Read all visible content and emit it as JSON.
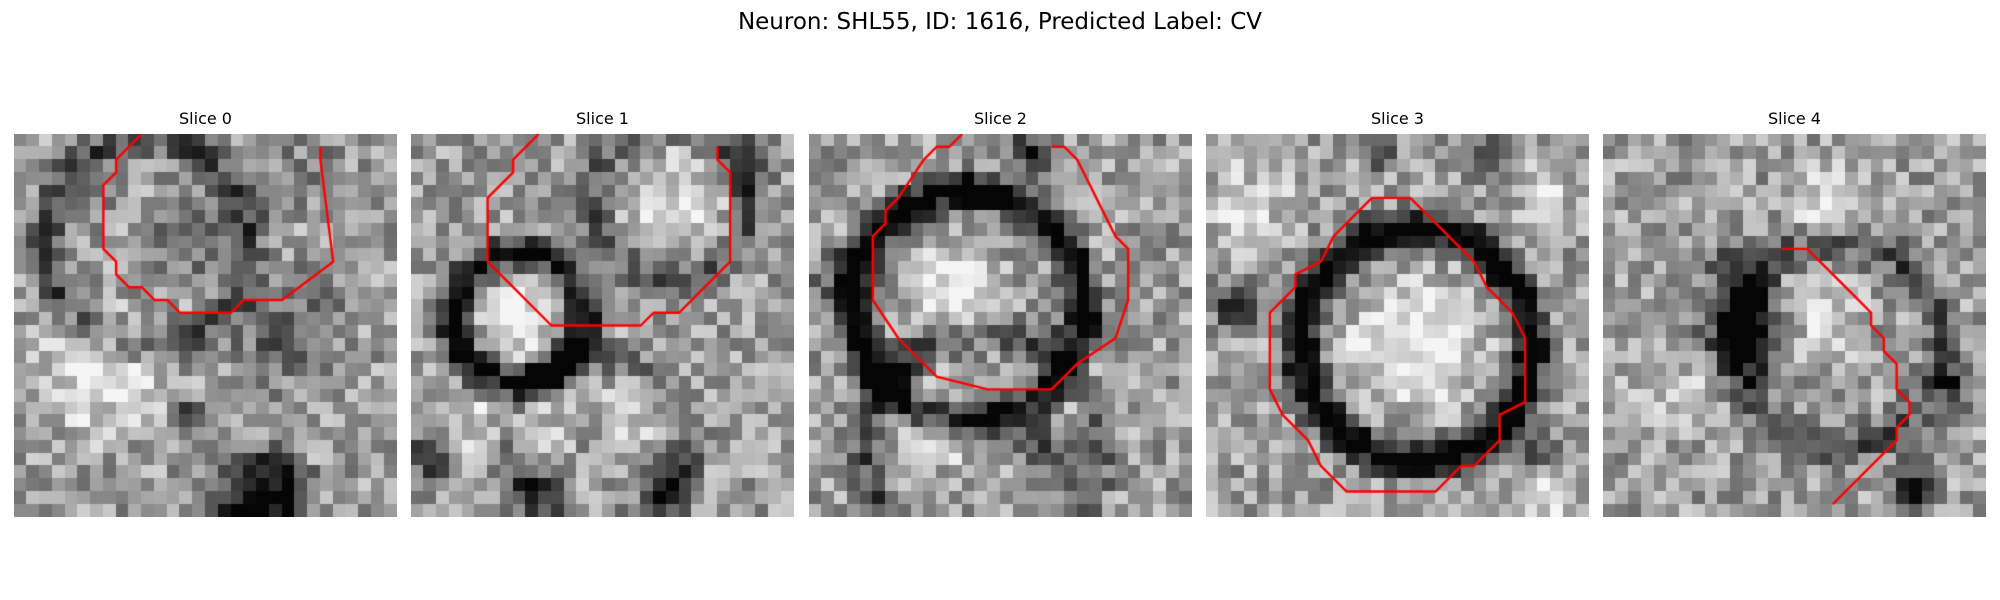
{
  "figure": {
    "title": "Neuron: SHL55, ID: 1616, Predicted Label: CV"
  },
  "panels": [
    {
      "title": "Slice 0",
      "seed": 101,
      "blobs": [
        [
          6,
          18,
          7,
          0.35
        ],
        [
          14,
          7,
          5,
          -0.25
        ],
        [
          21,
          15,
          6,
          -0.3
        ],
        [
          5,
          4,
          4,
          -0.15
        ],
        [
          23,
          2,
          4,
          -0.15
        ]
      ],
      "rings": [
        [
          10,
          8,
          8,
          -0.35
        ]
      ],
      "dark_spots": [
        [
          19,
          28,
          5,
          0.9
        ],
        [
          13,
          22,
          2,
          0.5
        ]
      ],
      "contour": [
        [
          10,
          0
        ],
        [
          8,
          2
        ],
        [
          8,
          3
        ],
        [
          7,
          4
        ],
        [
          7,
          9
        ],
        [
          8,
          10
        ],
        [
          8,
          11
        ],
        [
          9,
          12
        ],
        [
          10,
          12
        ],
        [
          11,
          13
        ],
        [
          12,
          13
        ],
        [
          13,
          14
        ],
        [
          17,
          14
        ],
        [
          18,
          13
        ],
        [
          21,
          13
        ],
        [
          25,
          10
        ],
        [
          24,
          2
        ],
        [
          24,
          1
        ]
      ]
    },
    {
      "title": "Slice 1",
      "seed": 202,
      "blobs": [
        [
          8,
          13,
          6,
          0.35
        ],
        [
          20,
          5,
          6,
          0.3
        ],
        [
          7,
          22,
          6,
          0.25
        ],
        [
          17,
          21,
          5,
          0.2
        ]
      ],
      "rings": [
        [
          8,
          14,
          5,
          -0.7
        ],
        [
          20,
          5,
          6,
          -0.3
        ],
        [
          14,
          24,
          7,
          -0.3
        ]
      ],
      "dark_spots": [
        [
          1,
          25,
          3,
          0.45
        ],
        [
          10,
          27,
          3,
          0.45
        ],
        [
          20,
          27,
          3,
          0.45
        ],
        [
          26,
          2,
          3,
          0.35
        ]
      ],
      "contour": [
        [
          10,
          0
        ],
        [
          8,
          2
        ],
        [
          8,
          3
        ],
        [
          7,
          4
        ],
        [
          6,
          5
        ],
        [
          6,
          10
        ],
        [
          8,
          12
        ],
        [
          10,
          14
        ],
        [
          11,
          15
        ],
        [
          18,
          15
        ],
        [
          19,
          14
        ],
        [
          21,
          14
        ],
        [
          22,
          13
        ],
        [
          24,
          11
        ],
        [
          25,
          10
        ],
        [
          25,
          3
        ],
        [
          24,
          2
        ],
        [
          24,
          1
        ]
      ]
    },
    {
      "title": "Slice 2",
      "seed": 303,
      "blobs": [
        [
          11,
          12,
          5,
          0.45
        ],
        [
          10,
          22,
          5,
          0.3
        ],
        [
          20,
          20,
          5,
          0.2
        ]
      ],
      "rings": [
        [
          12,
          13,
          9,
          -0.75
        ],
        [
          13,
          24,
          9,
          -0.35
        ]
      ],
      "dark_spots": [
        [
          17,
          1,
          3,
          0.5
        ],
        [
          6,
          18,
          3,
          0.35
        ],
        [
          2,
          11,
          3,
          0.35
        ],
        [
          18,
          24,
          3,
          0.4
        ]
      ],
      "contour": [
        [
          12,
          0
        ],
        [
          11,
          1
        ],
        [
          10,
          1
        ],
        [
          9,
          2
        ],
        [
          7,
          5
        ],
        [
          6,
          6
        ],
        [
          6,
          7
        ],
        [
          5,
          8
        ],
        [
          5,
          13
        ],
        [
          7,
          16
        ],
        [
          9,
          18
        ],
        [
          10,
          19
        ],
        [
          14,
          20
        ],
        [
          19,
          20
        ],
        [
          20,
          19
        ],
        [
          21,
          18
        ],
        [
          24,
          16
        ],
        [
          25,
          13
        ],
        [
          25,
          9
        ],
        [
          24,
          8
        ],
        [
          23,
          6
        ],
        [
          22,
          4
        ],
        [
          21,
          2
        ],
        [
          20,
          1
        ],
        [
          19,
          1
        ]
      ]
    },
    {
      "title": "Slice 3",
      "seed": 404,
      "blobs": [
        [
          16,
          16,
          7,
          0.45
        ],
        [
          3,
          5,
          5,
          0.25
        ],
        [
          26,
          4,
          4,
          0.2
        ],
        [
          26,
          28,
          4,
          0.25
        ]
      ],
      "rings": [
        [
          16,
          16,
          9,
          -0.8
        ]
      ],
      "dark_spots": [
        [
          2,
          13,
          3,
          0.5
        ],
        [
          13,
          1,
          2,
          0.35
        ],
        [
          25,
          24,
          3,
          0.4
        ],
        [
          21,
          1,
          3,
          0.35
        ]
      ],
      "contour": [
        [
          12,
          6
        ],
        [
          13,
          5
        ],
        [
          16,
          5
        ],
        [
          17,
          6
        ],
        [
          18,
          7
        ],
        [
          21,
          10
        ],
        [
          22,
          12
        ],
        [
          23,
          13
        ],
        [
          24,
          14
        ],
        [
          25,
          16
        ],
        [
          25,
          21
        ],
        [
          23,
          22
        ],
        [
          23,
          24
        ],
        [
          21,
          26
        ],
        [
          20,
          26
        ],
        [
          19,
          27
        ],
        [
          18,
          28
        ],
        [
          17,
          28
        ],
        [
          17,
          28
        ],
        [
          12,
          28
        ],
        [
          11,
          28
        ],
        [
          9,
          26
        ],
        [
          8,
          24
        ],
        [
          6,
          22
        ],
        [
          5,
          20
        ],
        [
          5,
          14
        ],
        [
          6,
          13
        ],
        [
          7,
          12
        ],
        [
          7,
          11
        ],
        [
          9,
          10
        ],
        [
          10,
          8
        ],
        [
          11,
          7
        ],
        [
          12,
          6
        ]
      ]
    },
    {
      "title": "Slice 4",
      "seed": 505,
      "blobs": [
        [
          16,
          14,
          5,
          0.3
        ],
        [
          5,
          20,
          5,
          0.2
        ],
        [
          18,
          5,
          5,
          0.25
        ]
      ],
      "rings": [
        [
          18,
          16,
          8,
          -0.35
        ]
      ],
      "dark_spots": [
        [
          11,
          15,
          5,
          0.75
        ],
        [
          10,
          10,
          3,
          0.45
        ],
        [
          24,
          27,
          3,
          0.6
        ],
        [
          27,
          19,
          3,
          0.35
        ]
      ],
      "contour": [
        [
          14,
          9
        ],
        [
          15,
          9
        ],
        [
          16,
          9
        ],
        [
          17,
          10
        ],
        [
          18,
          11
        ],
        [
          19,
          12
        ],
        [
          20,
          13
        ],
        [
          21,
          14
        ],
        [
          21,
          15
        ],
        [
          22,
          16
        ],
        [
          22,
          17
        ],
        [
          23,
          18
        ],
        [
          23,
          19
        ],
        [
          23,
          20
        ],
        [
          24,
          21
        ],
        [
          24,
          22
        ],
        [
          23,
          23
        ],
        [
          23,
          24
        ],
        [
          22,
          25
        ],
        [
          21,
          26
        ],
        [
          20,
          27
        ],
        [
          19,
          28
        ],
        [
          18,
          29
        ]
      ]
    }
  ]
}
